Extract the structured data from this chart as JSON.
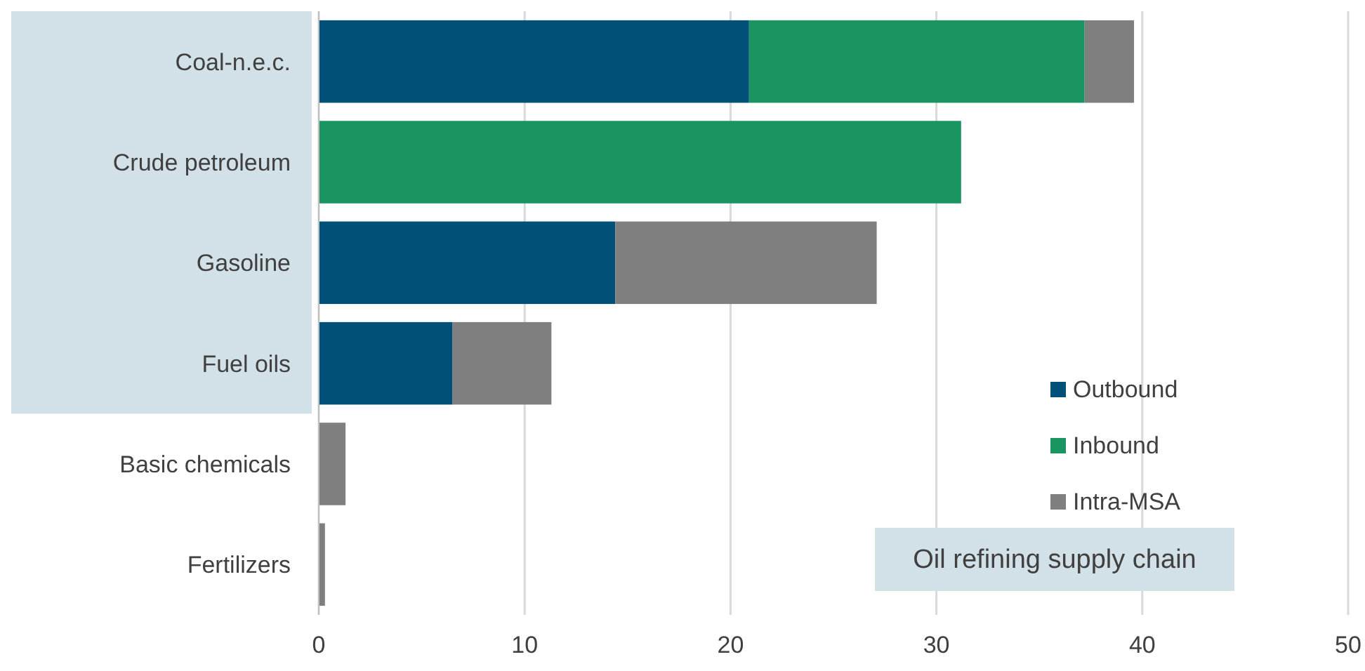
{
  "chart_data": {
    "type": "bar",
    "orientation": "horizontal",
    "stacked": true,
    "categories": [
      "Coal-n.e.c.",
      "Crude petroleum",
      "Gasoline",
      "Fuel oils",
      "Basic chemicals",
      "Fertilizers"
    ],
    "series": [
      {
        "name": "Outbound",
        "color": "#005078",
        "values": [
          20.9,
          0,
          14.4,
          6.5,
          0,
          0
        ]
      },
      {
        "name": "Inbound",
        "color": "#1a9460",
        "values": [
          16.3,
          31.2,
          0,
          0,
          0,
          0
        ]
      },
      {
        "name": "Intra-MSA",
        "color": "#7f7f7f",
        "values": [
          2.4,
          0,
          12.7,
          4.8,
          1.3,
          0.3
        ]
      }
    ],
    "xlim": [
      0,
      50
    ],
    "xticks": [
      0,
      10,
      20,
      30,
      40,
      50
    ],
    "grid": "x",
    "legend": "bottom right",
    "annotations": [
      "Oil refining supply chain"
    ]
  }
}
